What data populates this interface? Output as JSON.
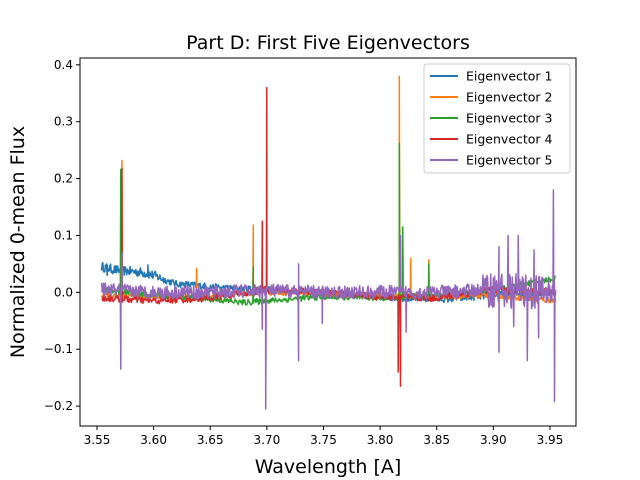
{
  "chart_data": {
    "type": "line",
    "title": "Part D: First Five Eigenvectors",
    "xlabel": "Wavelength [A]",
    "ylabel": "Normalized 0-mean Flux",
    "xlim": [
      3.535,
      3.973
    ],
    "ylim": [
      -0.235,
      0.412
    ],
    "xticks": [
      3.55,
      3.6,
      3.65,
      3.7,
      3.75,
      3.8,
      3.85,
      3.9,
      3.95
    ],
    "xtick_labels": [
      "3.55",
      "3.60",
      "3.65",
      "3.70",
      "3.75",
      "3.80",
      "3.85",
      "3.90",
      "3.95"
    ],
    "yticks": [
      -0.2,
      -0.1,
      0.0,
      0.1,
      0.2,
      0.3,
      0.4
    ],
    "ytick_labels": [
      "−0.2",
      "−0.1",
      "0.0",
      "0.1",
      "0.2",
      "0.3",
      "0.4"
    ],
    "legend_position": "top-right",
    "grid": false,
    "x_range": [
      3.554,
      3.955
    ],
    "series": [
      {
        "name": "Eigenvector 1",
        "color": "#1f77b4",
        "trend": [
          [
            3.554,
            0.045
          ],
          [
            3.57,
            0.038
          ],
          [
            3.58,
            0.037
          ],
          [
            3.59,
            0.035
          ],
          [
            3.6,
            0.03
          ],
          [
            3.61,
            0.022
          ],
          [
            3.62,
            0.015
          ],
          [
            3.64,
            0.012
          ],
          [
            3.66,
            0.008
          ],
          [
            3.7,
            0.005
          ],
          [
            3.74,
            0.0
          ],
          [
            3.78,
            -0.005
          ],
          [
            3.8,
            -0.008
          ],
          [
            3.82,
            -0.01
          ],
          [
            3.86,
            -0.012
          ],
          [
            3.9,
            -0.005
          ],
          [
            3.955,
            0.0
          ]
        ],
        "noise": 0.006,
        "spikes": [
          [
            3.559,
            0.03
          ],
          [
            3.595,
            0.048
          ]
        ]
      },
      {
        "name": "Eigenvector 2",
        "color": "#ff7f0e",
        "trend": [
          [
            3.554,
            -0.005
          ],
          [
            3.6,
            -0.008
          ],
          [
            3.65,
            -0.005
          ],
          [
            3.7,
            0.0
          ],
          [
            3.75,
            -0.003
          ],
          [
            3.8,
            -0.005
          ],
          [
            3.85,
            -0.008
          ],
          [
            3.9,
            -0.005
          ],
          [
            3.955,
            -0.015
          ]
        ],
        "noise": 0.005,
        "spikes": [
          [
            3.572,
            0.232
          ],
          [
            3.638,
            0.042
          ],
          [
            3.688,
            0.118
          ],
          [
            3.817,
            0.38
          ],
          [
            3.82,
            0.11
          ],
          [
            3.827,
            0.06
          ],
          [
            3.843,
            0.057
          ]
        ]
      },
      {
        "name": "Eigenvector 3",
        "color": "#2ca02c",
        "trend": [
          [
            3.554,
            0.005
          ],
          [
            3.6,
            -0.005
          ],
          [
            3.65,
            -0.012
          ],
          [
            3.68,
            -0.018
          ],
          [
            3.7,
            -0.015
          ],
          [
            3.75,
            -0.008
          ],
          [
            3.8,
            -0.01
          ],
          [
            3.85,
            -0.005
          ],
          [
            3.9,
            0.005
          ],
          [
            3.93,
            0.015
          ],
          [
            3.955,
            0.025
          ]
        ],
        "noise": 0.005,
        "spikes": [
          [
            3.571,
            0.216
          ],
          [
            3.688,
            0.045
          ],
          [
            3.817,
            0.262
          ],
          [
            3.82,
            0.115
          ],
          [
            3.843,
            0.05
          ]
        ]
      },
      {
        "name": "Eigenvector 4",
        "color": "#d62728",
        "trend": [
          [
            3.554,
            -0.01
          ],
          [
            3.6,
            -0.015
          ],
          [
            3.65,
            -0.01
          ],
          [
            3.7,
            0.005
          ],
          [
            3.75,
            0.0
          ],
          [
            3.8,
            -0.008
          ],
          [
            3.85,
            -0.01
          ],
          [
            3.9,
            0.005
          ],
          [
            3.955,
            0.0
          ]
        ],
        "noise": 0.006,
        "spikes": [
          [
            3.572,
            0.218
          ],
          [
            3.696,
            0.125
          ],
          [
            3.7,
            0.36
          ],
          [
            3.816,
            -0.14
          ],
          [
            3.818,
            -0.165
          ]
        ]
      },
      {
        "name": "Eigenvector 5",
        "color": "#9467bd",
        "trend": [
          [
            3.554,
            0.005
          ],
          [
            3.6,
            0.0
          ],
          [
            3.65,
            0.0
          ],
          [
            3.7,
            0.003
          ],
          [
            3.75,
            0.0
          ],
          [
            3.8,
            0.0
          ],
          [
            3.85,
            0.0
          ],
          [
            3.9,
            0.005
          ],
          [
            3.955,
            0.0
          ]
        ],
        "noise": 0.012,
        "spikes": [
          [
            3.571,
            -0.135
          ],
          [
            3.572,
            0.07
          ],
          [
            3.696,
            -0.065
          ],
          [
            3.699,
            -0.205
          ],
          [
            3.728,
            -0.12
          ],
          [
            3.728,
            0.05
          ],
          [
            3.749,
            -0.055
          ],
          [
            3.818,
            0.1
          ],
          [
            3.823,
            -0.07
          ],
          [
            3.905,
            0.08
          ],
          [
            3.905,
            -0.105
          ],
          [
            3.913,
            0.1
          ],
          [
            3.918,
            -0.06
          ],
          [
            3.922,
            0.1
          ],
          [
            3.93,
            -0.12
          ],
          [
            3.936,
            0.075
          ],
          [
            3.94,
            -0.08
          ],
          [
            3.953,
            0.18
          ],
          [
            3.954,
            -0.192
          ]
        ]
      }
    ]
  }
}
